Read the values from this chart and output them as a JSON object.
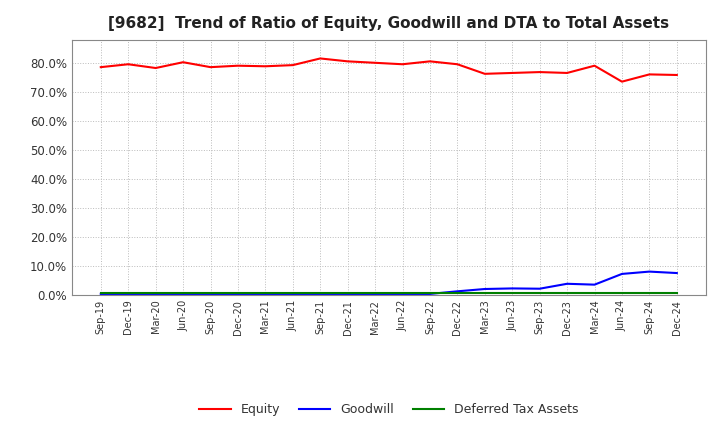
{
  "title": "[9682]  Trend of Ratio of Equity, Goodwill and DTA to Total Assets",
  "x_labels": [
    "Sep-19",
    "Dec-19",
    "Mar-20",
    "Jun-20",
    "Sep-20",
    "Dec-20",
    "Mar-21",
    "Jun-21",
    "Sep-21",
    "Dec-21",
    "Mar-22",
    "Jun-22",
    "Sep-22",
    "Dec-22",
    "Mar-23",
    "Jun-23",
    "Sep-23",
    "Dec-23",
    "Mar-24",
    "Jun-24",
    "Sep-24",
    "Dec-24"
  ],
  "equity": [
    78.5,
    79.5,
    78.2,
    80.2,
    78.5,
    79.0,
    78.8,
    79.2,
    81.5,
    80.5,
    80.0,
    79.5,
    80.5,
    79.5,
    76.2,
    76.5,
    76.8,
    76.5,
    79.0,
    73.5,
    76.0,
    75.8
  ],
  "goodwill": [
    0.3,
    0.3,
    0.3,
    0.3,
    0.3,
    0.3,
    0.3,
    0.3,
    0.3,
    0.3,
    0.3,
    0.3,
    0.3,
    1.2,
    2.0,
    2.2,
    2.1,
    3.8,
    3.5,
    7.2,
    8.0,
    7.5
  ],
  "dta": [
    0.5,
    0.5,
    0.5,
    0.5,
    0.5,
    0.5,
    0.5,
    0.5,
    0.5,
    0.5,
    0.5,
    0.5,
    0.5,
    0.5,
    0.5,
    0.5,
    0.5,
    0.5,
    0.5,
    0.5,
    0.5,
    0.5
  ],
  "equity_color": "#FF0000",
  "goodwill_color": "#0000FF",
  "dta_color": "#008000",
  "ylim": [
    0,
    88
  ],
  "yticks": [
    0,
    10,
    20,
    30,
    40,
    50,
    60,
    70,
    80
  ],
  "background_color": "#FFFFFF",
  "plot_bg_color": "#FFFFFF",
  "grid_color": "#BBBBBB",
  "title_fontsize": 11,
  "legend_labels": [
    "Equity",
    "Goodwill",
    "Deferred Tax Assets"
  ]
}
